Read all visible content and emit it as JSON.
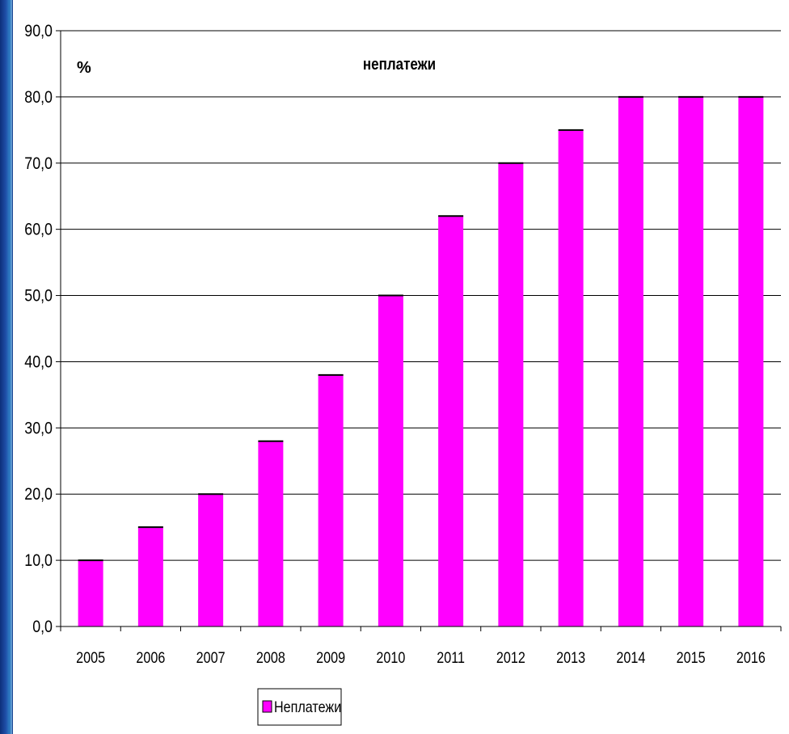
{
  "chart_data": {
    "type": "bar",
    "title": "неплатежи",
    "ylabel": "%",
    "xlabel": "",
    "categories": [
      "2005",
      "2006",
      "2007",
      "2008",
      "2009",
      "2010",
      "2011",
      "2012",
      "2013",
      "2014",
      "2015",
      "2016"
    ],
    "series": [
      {
        "name": "Неплатежи",
        "values": [
          10,
          15,
          20,
          28,
          38,
          50,
          62,
          70,
          75,
          80,
          80,
          80
        ]
      }
    ],
    "ylim": [
      0,
      90
    ],
    "yticks": [
      "0,0",
      "10,0",
      "20,0",
      "30,0",
      "40,0",
      "50,0",
      "60,0",
      "70,0",
      "80,0",
      "90,0"
    ],
    "grid": true,
    "legend_position": "bottom",
    "colors": {
      "bar": "#ff00ff",
      "bar_outline": "#000000",
      "grid": "#000000"
    }
  }
}
